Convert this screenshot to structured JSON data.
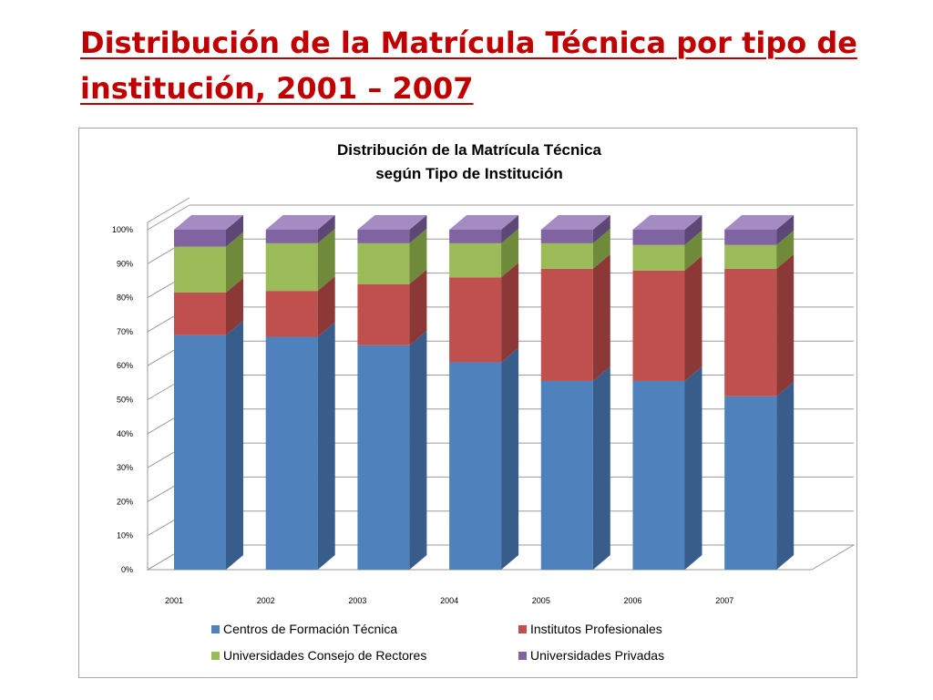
{
  "slide": {
    "title": "Distribución de la Matrícula Técnica por tipo de institución, 2001 – 2007"
  },
  "chart_data": {
    "type": "bar",
    "stacked": true,
    "percent_stacked": true,
    "three_d": true,
    "title_lines": [
      "Distribución de la Matrícula Técnica",
      "según Tipo de Institución"
    ],
    "categories": [
      "2001",
      "2002",
      "2003",
      "2004",
      "2005",
      "2006",
      "2007"
    ],
    "series": [
      {
        "name": "Centros de Formación Técnica",
        "color": "#4f81bd",
        "side_color": "#385d8a",
        "top_color": "#7ea3d3",
        "values": [
          69,
          68.5,
          66,
          61,
          55.5,
          55.5,
          51
        ]
      },
      {
        "name": "Institutos Profesionales",
        "color": "#c0504d",
        "side_color": "#8c3836",
        "top_color": "#d9837f",
        "values": [
          12.5,
          13.5,
          18,
          25,
          33,
          32.5,
          37.5
        ]
      },
      {
        "name": "Universidades Consejo de Rectores",
        "color": "#9bbb59",
        "side_color": "#6e8a3a",
        "top_color": "#bcd48c",
        "values": [
          13.5,
          14,
          12,
          10,
          7.5,
          7.5,
          7
        ]
      },
      {
        "name": "Universidades Privadas",
        "color": "#8064a2",
        "side_color": "#5c4776",
        "top_color": "#a48cc2",
        "values": [
          5,
          4,
          4,
          4,
          4,
          4.5,
          4.5
        ]
      }
    ],
    "y_ticks": [
      "0%",
      "10%",
      "20%",
      "30%",
      "40%",
      "50%",
      "60%",
      "70%",
      "80%",
      "90%",
      "100%"
    ],
    "ylim": [
      0,
      100
    ],
    "grid": true,
    "legend_position": "bottom"
  }
}
